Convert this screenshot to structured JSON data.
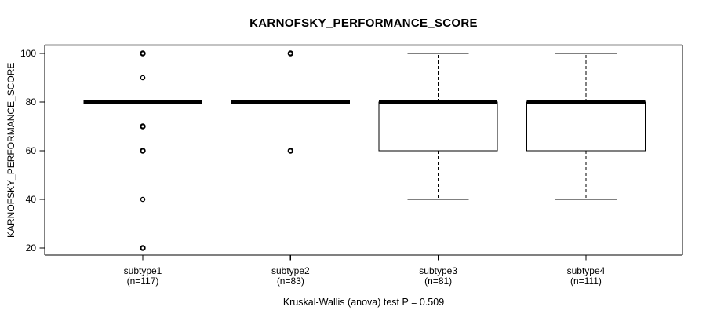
{
  "chart_data": {
    "type": "boxplot",
    "title": "KARNOFSKY_PERFORMANCE_SCORE",
    "ylabel": "KARNOFSKY_PERFORMANCE_SCORE",
    "xlabel": "",
    "footer": "Kruskal-Wallis (anova) test P = 0.509",
    "yticks": [
      20,
      40,
      60,
      80,
      100
    ],
    "ylim": [
      17,
      103.5
    ],
    "grid": false,
    "legend": "none",
    "groups": [
      {
        "label": "subtype1",
        "sublabel": "(n=117)",
        "n": 117,
        "median": 80,
        "q1": 80,
        "q3": 80,
        "whisker_low": 80,
        "whisker_high": 80,
        "outliers": [
          100,
          90,
          70,
          60,
          40,
          20
        ],
        "outliers_heavy": [
          100,
          70,
          60,
          20
        ]
      },
      {
        "label": "subtype2",
        "sublabel": "(n=83)",
        "n": 83,
        "median": 80,
        "q1": 80,
        "q3": 80,
        "whisker_low": 80,
        "whisker_high": 80,
        "outliers": [
          100,
          60
        ],
        "outliers_heavy": [
          100,
          60
        ]
      },
      {
        "label": "subtype3",
        "sublabel": "(n=81)",
        "n": 81,
        "median": 80,
        "q1": 60,
        "q3": 80,
        "whisker_low": 40,
        "whisker_high": 100,
        "outliers": [],
        "outliers_heavy": []
      },
      {
        "label": "subtype4",
        "sublabel": "(n=111)",
        "n": 111,
        "median": 80,
        "q1": 60,
        "q3": 80,
        "whisker_low": 40,
        "whisker_high": 100,
        "outliers": [],
        "outliers_heavy": []
      }
    ],
    "colors": {
      "line": "#000000",
      "frame_top": "#878787",
      "box_fill": "#ffffff",
      "background": "#ffffff"
    }
  }
}
